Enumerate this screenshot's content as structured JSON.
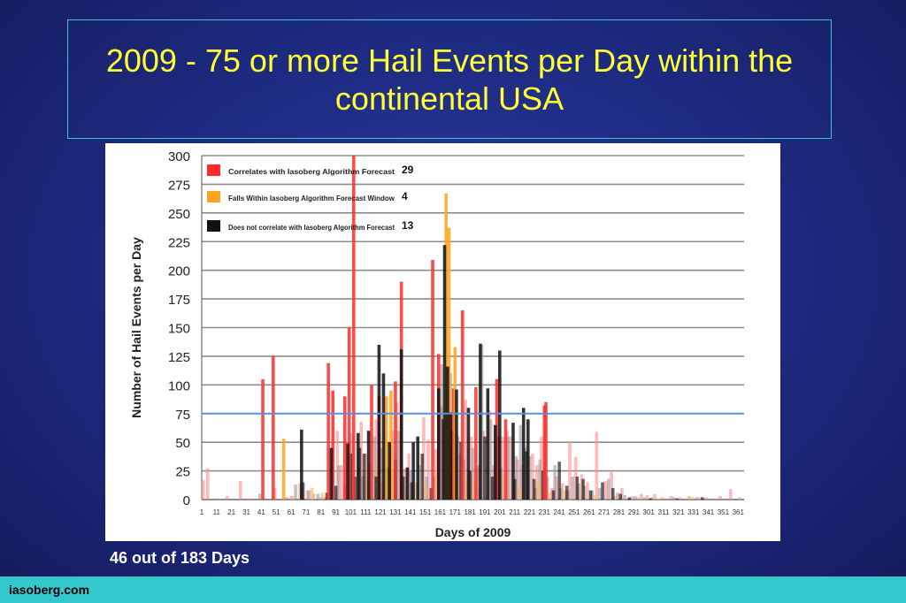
{
  "slide": {
    "title": "2009 - 75 or more Hail Events per Day within the continental USA",
    "caption": "46 out of 183 Days",
    "footer": "iasoberg.com"
  },
  "colors": {
    "background": "#1f2c85",
    "title": "#ffff33",
    "footer_bar": "#34c8cc",
    "threshold_line": "#5b8ee0",
    "red_series": "#ff2a2a",
    "orange_series": "#ffa31f",
    "black_series": "#111111"
  },
  "chart_data": {
    "type": "bar",
    "title": "",
    "xlabel": "Days of 2009",
    "ylabel": "Number of Hail Events per Day",
    "ylim": [
      0,
      300
    ],
    "yticks": [
      0,
      25,
      50,
      75,
      100,
      125,
      150,
      175,
      200,
      225,
      250,
      275,
      300
    ],
    "xticks": [
      "1",
      "11",
      "21",
      "31",
      "41",
      "51",
      "61",
      "71",
      "81",
      "91",
      "101",
      "111",
      "121",
      "131",
      "141",
      "151",
      "161",
      "171",
      "181",
      "191",
      "201",
      "211",
      "221",
      "231",
      "241",
      "251",
      "261",
      "271",
      "281",
      "291",
      "301",
      "311",
      "321",
      "331",
      "341",
      "351",
      "361"
    ],
    "xlim": [
      1,
      365
    ],
    "grid": true,
    "threshold": 75,
    "legend_position": "top-left",
    "legend": [
      {
        "label": "Correlates with Iasoberg Algorithm Forecast",
        "count": "29",
        "color": "#ff2a2a"
      },
      {
        "label": "Falls Within Iasoberg Algorithm Forecast Window",
        "count": "4",
        "color": "#ffa31f"
      },
      {
        "label": "Does not correlate with Iasoberg Algorithm Forecast",
        "count": "13",
        "color": "#111111"
      }
    ],
    "series": [
      {
        "name": "Correlates with Iasoberg Algorithm Forecast",
        "color": "#ff2a2a",
        "points": [
          [
            42,
            105
          ],
          [
            49,
            125
          ],
          [
            86,
            119
          ],
          [
            89,
            95
          ],
          [
            97,
            90
          ],
          [
            100,
            150
          ],
          [
            103,
            300
          ],
          [
            115,
            100
          ],
          [
            120,
            90
          ],
          [
            131,
            103
          ],
          [
            135,
            190
          ],
          [
            156,
            209
          ],
          [
            160,
            127
          ],
          [
            170,
            97
          ],
          [
            176,
            165
          ],
          [
            185,
            98
          ],
          [
            199,
            105
          ],
          [
            205,
            70
          ],
          [
            231,
            82
          ],
          [
            232,
            85
          ]
        ]
      },
      {
        "name": "Falls Within Iasoberg Algorithm Forecast Window",
        "color": "#ffa31f",
        "points": [
          [
            56,
            53
          ],
          [
            125,
            90
          ],
          [
            128,
            95
          ],
          [
            165,
            267
          ],
          [
            167,
            237
          ],
          [
            171,
            133
          ]
        ]
      },
      {
        "name": "Does not correlate with Iasoberg Algorithm Forecast",
        "color": "#111111",
        "points": [
          [
            68,
            61
          ],
          [
            88,
            45
          ],
          [
            99,
            49
          ],
          [
            106,
            58
          ],
          [
            113,
            60
          ],
          [
            120,
            135
          ],
          [
            123,
            110
          ],
          [
            127,
            50
          ],
          [
            135,
            131
          ],
          [
            139,
            28
          ],
          [
            143,
            50
          ],
          [
            146,
            55
          ],
          [
            160,
            97
          ],
          [
            164,
            222
          ],
          [
            166,
            116
          ],
          [
            168,
            76
          ],
          [
            172,
            96
          ],
          [
            180,
            80
          ],
          [
            188,
            136
          ],
          [
            193,
            97
          ],
          [
            198,
            65
          ],
          [
            201,
            130
          ],
          [
            210,
            67
          ],
          [
            217,
            80
          ],
          [
            220,
            70
          ]
        ]
      },
      {
        "name": "",
        "color": "#ff8c8c",
        "points": [
          [
            2,
            17
          ],
          [
            5,
            27
          ],
          [
            12,
            1
          ],
          [
            18,
            3
          ],
          [
            27,
            16
          ],
          [
            33,
            1
          ],
          [
            50,
            10
          ],
          [
            61,
            3
          ],
          [
            67,
            14
          ],
          [
            72,
            8
          ],
          [
            76,
            5
          ],
          [
            81,
            2
          ],
          [
            92,
            60
          ],
          [
            95,
            30
          ],
          [
            108,
            68
          ],
          [
            111,
            40
          ],
          [
            118,
            70
          ],
          [
            122,
            15
          ],
          [
            129,
            60
          ],
          [
            132,
            85
          ],
          [
            137,
            27
          ],
          [
            140,
            40
          ],
          [
            150,
            72
          ],
          [
            153,
            52
          ],
          [
            158,
            44
          ],
          [
            162,
            82
          ],
          [
            174,
            40
          ],
          [
            178,
            87
          ],
          [
            182,
            55
          ],
          [
            186,
            28
          ],
          [
            190,
            60
          ],
          [
            194,
            78
          ],
          [
            197,
            30
          ],
          [
            203,
            55
          ],
          [
            206,
            60
          ],
          [
            209,
            55
          ],
          [
            213,
            35
          ],
          [
            216,
            30
          ],
          [
            223,
            40
          ],
          [
            226,
            30
          ],
          [
            229,
            55
          ],
          [
            236,
            10
          ],
          [
            239,
            20
          ],
          [
            243,
            14
          ],
          [
            248,
            50
          ],
          [
            252,
            37
          ],
          [
            256,
            22
          ],
          [
            260,
            15
          ],
          [
            266,
            59
          ],
          [
            272,
            16
          ],
          [
            276,
            24
          ],
          [
            283,
            10
          ],
          [
            290,
            3
          ],
          [
            296,
            5
          ],
          [
            300,
            4
          ],
          [
            305,
            5
          ],
          [
            310,
            2
          ],
          [
            316,
            3
          ],
          [
            322,
            2
          ],
          [
            328,
            3
          ],
          [
            335,
            2
          ],
          [
            340,
            2
          ],
          [
            349,
            3
          ],
          [
            356,
            9
          ],
          [
            362,
            2
          ]
        ]
      },
      {
        "name": "",
        "color": "#9a9a9a",
        "points": [
          [
            40,
            5
          ],
          [
            58,
            2
          ],
          [
            64,
            13
          ],
          [
            73,
            8
          ],
          [
            79,
            5
          ],
          [
            84,
            2
          ],
          [
            93,
            30
          ],
          [
            97,
            13
          ],
          [
            102,
            58
          ],
          [
            109,
            20
          ],
          [
            114,
            30
          ],
          [
            117,
            55
          ],
          [
            121,
            45
          ],
          [
            124,
            75
          ],
          [
            133,
            60
          ],
          [
            138,
            20
          ],
          [
            141,
            25
          ],
          [
            147,
            30
          ],
          [
            152,
            20
          ],
          [
            157,
            20
          ],
          [
            161,
            80
          ],
          [
            162,
            118
          ],
          [
            168,
            110
          ],
          [
            173,
            55
          ],
          [
            177,
            35
          ],
          [
            183,
            45
          ],
          [
            187,
            30
          ],
          [
            189,
            135
          ],
          [
            195,
            70
          ],
          [
            202,
            28
          ],
          [
            207,
            55
          ],
          [
            212,
            38
          ],
          [
            215,
            65
          ],
          [
            218,
            45
          ],
          [
            221,
            38
          ],
          [
            225,
            10
          ],
          [
            228,
            35
          ],
          [
            233,
            20
          ],
          [
            238,
            30
          ],
          [
            242,
            10
          ],
          [
            247,
            8
          ],
          [
            250,
            20
          ],
          [
            254,
            14
          ],
          [
            258,
            12
          ],
          [
            263,
            8
          ],
          [
            268,
            10
          ],
          [
            274,
            18
          ],
          [
            280,
            6
          ],
          [
            285,
            4
          ],
          [
            292,
            3
          ],
          [
            298,
            2
          ],
          [
            303,
            2
          ],
          [
            312,
            1
          ],
          [
            318,
            2
          ],
          [
            325,
            1
          ],
          [
            333,
            2
          ],
          [
            344,
            1
          ],
          [
            353,
            1
          ]
        ]
      },
      {
        "name": "",
        "color": "#000000",
        "points": [
          [
            69,
            15
          ],
          [
            85,
            6
          ],
          [
            91,
            12
          ],
          [
            101,
            40
          ],
          [
            104,
            20
          ],
          [
            107,
            45
          ],
          [
            110,
            40
          ],
          [
            118,
            20
          ],
          [
            126,
            28
          ],
          [
            131,
            35
          ],
          [
            136,
            20
          ],
          [
            142,
            15
          ],
          [
            149,
            40
          ],
          [
            155,
            10
          ],
          [
            163,
            70
          ],
          [
            169,
            60
          ],
          [
            175,
            50
          ],
          [
            181,
            25
          ],
          [
            191,
            55
          ],
          [
            196,
            20
          ],
          [
            200,
            55
          ],
          [
            211,
            18
          ],
          [
            219,
            42
          ],
          [
            224,
            18
          ],
          [
            230,
            25
          ],
          [
            237,
            8
          ],
          [
            241,
            33
          ],
          [
            246,
            12
          ],
          [
            253,
            20
          ],
          [
            257,
            18
          ],
          [
            262,
            8
          ],
          [
            270,
            15
          ],
          [
            277,
            10
          ],
          [
            282,
            5
          ],
          [
            288,
            2
          ],
          [
            302,
            1
          ],
          [
            320,
            1
          ],
          [
            337,
            2
          ]
        ]
      },
      {
        "name": "",
        "color": "#ffb35a",
        "points": [
          [
            62,
            3
          ],
          [
            75,
            10
          ],
          [
            82,
            6
          ],
          [
            112,
            20
          ],
          [
            119,
            32
          ],
          [
            130,
            27
          ],
          [
            145,
            15
          ],
          [
            151,
            12
          ],
          [
            159,
            25
          ],
          [
            179,
            20
          ],
          [
            184,
            15
          ],
          [
            204,
            22
          ],
          [
            214,
            12
          ],
          [
            227,
            15
          ],
          [
            234,
            6
          ],
          [
            245,
            8
          ],
          [
            255,
            5
          ],
          [
            265,
            4
          ],
          [
            278,
            3
          ],
          [
            294,
            2
          ],
          [
            308,
            1
          ],
          [
            330,
            2
          ],
          [
            346,
            1
          ]
        ]
      }
    ]
  }
}
